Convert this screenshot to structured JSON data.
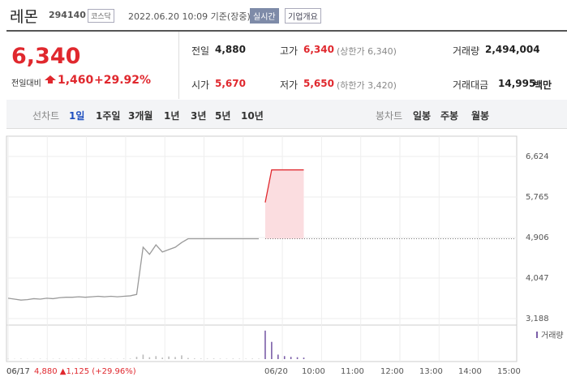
{
  "header": {
    "name": "레몬",
    "code": "294140",
    "market": "코스닥",
    "timestamp": "2022.06.20 10:09 기준(장중)",
    "realtime": "실시간",
    "company_info": "기업개요"
  },
  "summary": {
    "price": "6,340",
    "change_label": "전일대비",
    "change": "1,460",
    "change_rate": "+29.92%",
    "stats": [
      {
        "label": "전일",
        "value": "4,880"
      },
      {
        "label": "고가",
        "value": "6,340",
        "note": "(상한가 6,340)"
      },
      {
        "label": "거래량",
        "value": "2,494,004"
      },
      {
        "label": "시가",
        "value": "5,670"
      },
      {
        "label": "저가",
        "value": "5,650",
        "note": "(하한가 3,420)"
      },
      {
        "label": "거래대금",
        "value": "14,995",
        "unit": "백만"
      }
    ]
  },
  "tabs": {
    "line_chart": "선차트",
    "line_periods": [
      "1일",
      "1주일",
      "3개월",
      "1년",
      "3년",
      "5년",
      "10년"
    ],
    "candle_chart": "봉차트",
    "candle_periods": [
      "일봉",
      "주봉",
      "월봉"
    ]
  },
  "chart_data": {
    "type": "line",
    "x_labels": [
      "06/17",
      "06/20",
      "10:00",
      "11:00",
      "12:00",
      "13:00",
      "14:00",
      "15:00"
    ],
    "ylim": [
      3102,
      6985
    ],
    "yticks": [
      {
        "value": 3188,
        "label": "3,188"
      },
      {
        "value": 4047,
        "label": "4,047"
      },
      {
        "value": 4906,
        "label": "4,906"
      },
      {
        "value": 5765,
        "label": "5,765"
      },
      {
        "value": 6624,
        "label": "6,624"
      }
    ],
    "baseline": 4880,
    "series": [
      {
        "color": "#9a9a9a",
        "values": [
          3620,
          3600,
          3580,
          3590,
          3610,
          3600,
          3620,
          3610,
          3630,
          3640,
          3640,
          3650,
          3640,
          3650,
          3660,
          3650,
          3660,
          3650,
          3660,
          3670,
          3700,
          4700,
          4550,
          4750,
          4600,
          4650,
          4700,
          4800,
          4880,
          4880,
          4880,
          4880,
          4880,
          4880,
          4880,
          4880,
          4880,
          4880,
          4880,
          4880,
          null,
          null,
          null,
          null,
          null,
          null,
          null,
          null,
          null,
          null,
          null,
          null,
          null,
          null,
          null,
          null,
          null,
          null,
          null,
          null,
          null,
          null,
          null,
          null,
          null,
          null,
          null,
          null,
          null,
          null,
          null,
          null,
          null,
          null,
          null,
          null,
          null,
          null,
          null,
          null
        ]
      },
      {
        "color": "#e0282e",
        "values": [
          null,
          null,
          null,
          null,
          null,
          null,
          null,
          null,
          null,
          null,
          null,
          null,
          null,
          null,
          null,
          null,
          null,
          null,
          null,
          null,
          null,
          null,
          null,
          null,
          null,
          null,
          null,
          null,
          null,
          null,
          null,
          null,
          null,
          null,
          null,
          null,
          null,
          null,
          null,
          null,
          5650,
          6340,
          6340,
          6340,
          6340,
          6340,
          6340,
          null,
          null,
          null,
          null,
          null,
          null,
          null,
          null,
          null,
          null,
          null,
          null,
          null,
          null,
          null,
          null,
          null,
          null,
          null,
          null,
          null,
          null,
          null,
          null,
          null,
          null,
          null,
          null,
          null,
          null,
          null,
          null,
          null
        ]
      }
    ],
    "volume": {
      "name": "거래량",
      "color": "#7b5ea8",
      "ylim": [
        0,
        400000
      ],
      "values": [
        4000,
        3000,
        5000,
        2000,
        3000,
        4000,
        2000,
        3000,
        5000,
        3000,
        2000,
        4000,
        3000,
        2000,
        3000,
        4000,
        3000,
        2000,
        5000,
        6000,
        30000,
        60000,
        25000,
        40000,
        20000,
        35000,
        28000,
        50000,
        15000,
        8000,
        6000,
        5000,
        7000,
        5000,
        4000,
        6000,
        5000,
        4000,
        6000,
        5000,
        380000,
        230000,
        60000,
        40000,
        30000,
        25000,
        20000,
        null,
        null,
        null,
        null,
        null,
        null,
        null,
        null,
        null,
        null,
        null,
        null,
        null,
        null,
        null,
        null,
        null,
        null,
        null,
        null,
        null,
        null,
        null,
        null,
        null,
        null,
        null,
        null,
        null,
        null,
        null,
        null,
        null
      ]
    },
    "cursor": {
      "date": "06/17",
      "value": "4,880 ▲1,125 (+29.96%)"
    }
  }
}
